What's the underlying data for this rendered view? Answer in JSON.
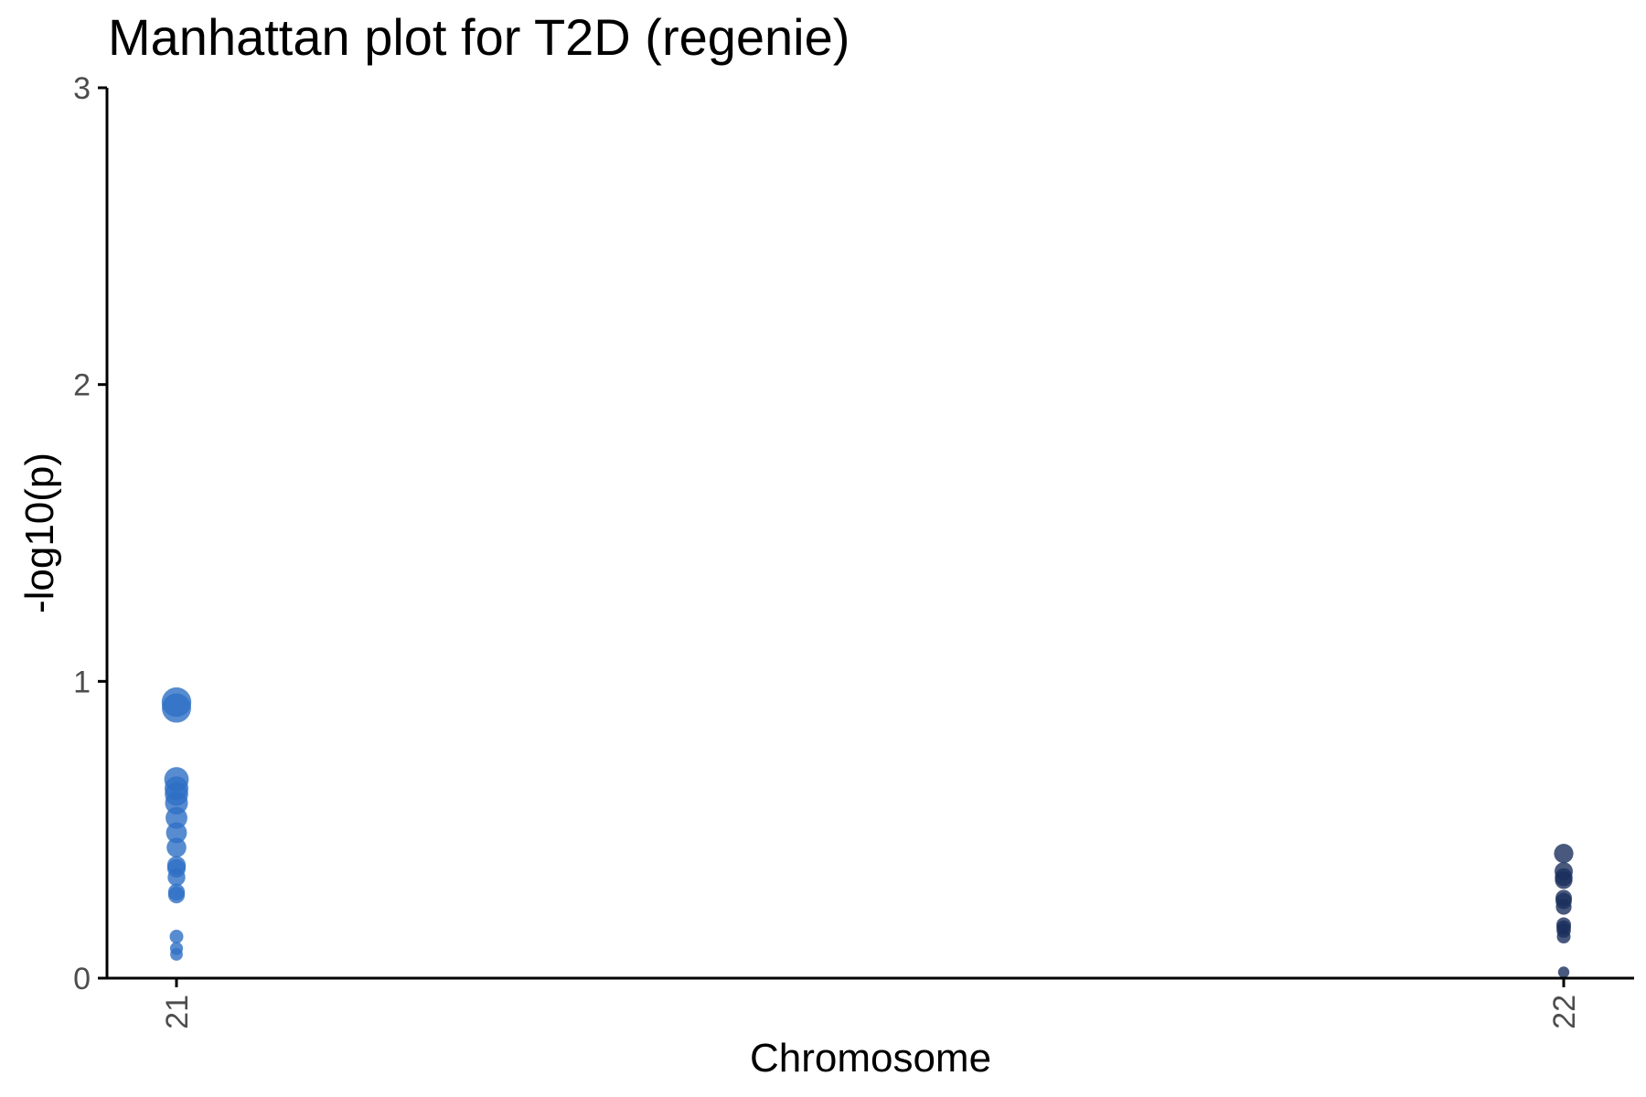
{
  "chart_data": {
    "type": "scatter",
    "title": "Manhattan plot for T2D (regenie)",
    "xlabel": "Chromosome",
    "ylabel": "-log10(p)",
    "ylim": [
      0,
      3
    ],
    "yticks": [
      "0",
      "1",
      "2",
      "3"
    ],
    "categories": [
      "21",
      "22"
    ],
    "grid": false,
    "legend": "none",
    "series": [
      {
        "chromosome": "21",
        "color": "#2e6fc4",
        "values": [
          0.93,
          0.91,
          0.67,
          0.64,
          0.62,
          0.59,
          0.54,
          0.49,
          0.44,
          0.38,
          0.37,
          0.34,
          0.29,
          0.28,
          0.14,
          0.1,
          0.08
        ]
      },
      {
        "chromosome": "22",
        "color": "#1c2f5e",
        "values": [
          0.42,
          0.36,
          0.34,
          0.33,
          0.27,
          0.26,
          0.24,
          0.18,
          0.17,
          0.16,
          0.14,
          0.02
        ]
      }
    ]
  }
}
